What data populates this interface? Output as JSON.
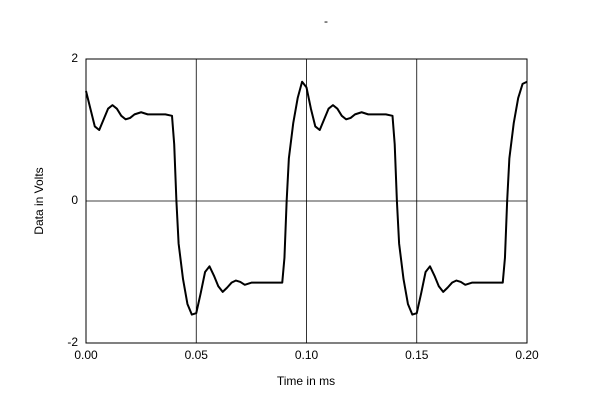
{
  "chart_data": {
    "type": "line",
    "title": "-",
    "x_label": "Time in ms",
    "y_label": "Data in Volts",
    "xlim": [
      0,
      0.2
    ],
    "ylim": [
      -2,
      2
    ],
    "xticks": [
      {
        "value": 0,
        "label": "0.00"
      },
      0.05,
      {
        "value": 0.1,
        "label": "0.10"
      },
      0.15,
      {
        "value": 0.2,
        "label": "0.20"
      }
    ],
    "yticks": [
      -2,
      0,
      2
    ],
    "grid": true,
    "series": [
      {
        "color": "#000000",
        "x": [
          0.0,
          0.002,
          0.004,
          0.006,
          0.008,
          0.01,
          0.012,
          0.014,
          0.016,
          0.018,
          0.02,
          0.022,
          0.025,
          0.028,
          0.032,
          0.036,
          0.039,
          0.04,
          0.041,
          0.042,
          0.044,
          0.046,
          0.048,
          0.05,
          0.052,
          0.054,
          0.056,
          0.058,
          0.06,
          0.062,
          0.064,
          0.066,
          0.068,
          0.07,
          0.072,
          0.075,
          0.08,
          0.085,
          0.089,
          0.09,
          0.091,
          0.092,
          0.094,
          0.096,
          0.098,
          0.1,
          0.102,
          0.104,
          0.106,
          0.108,
          0.11,
          0.112,
          0.114,
          0.116,
          0.118,
          0.12,
          0.122,
          0.125,
          0.128,
          0.132,
          0.136,
          0.139,
          0.14,
          0.141,
          0.142,
          0.144,
          0.146,
          0.148,
          0.15,
          0.152,
          0.154,
          0.156,
          0.158,
          0.16,
          0.162,
          0.164,
          0.166,
          0.168,
          0.17,
          0.172,
          0.175,
          0.18,
          0.185,
          0.189,
          0.19,
          0.191,
          0.192,
          0.194,
          0.196,
          0.198,
          0.2
        ],
        "values": [
          1.55,
          1.3,
          1.05,
          1.0,
          1.15,
          1.3,
          1.35,
          1.3,
          1.2,
          1.15,
          1.17,
          1.22,
          1.25,
          1.22,
          1.22,
          1.22,
          1.2,
          0.8,
          0.0,
          -0.6,
          -1.1,
          -1.45,
          -1.6,
          -1.58,
          -1.3,
          -1.0,
          -0.92,
          -1.05,
          -1.2,
          -1.28,
          -1.22,
          -1.15,
          -1.12,
          -1.14,
          -1.18,
          -1.15,
          -1.15,
          -1.15,
          -1.15,
          -0.8,
          0.0,
          0.6,
          1.1,
          1.45,
          1.68,
          1.6,
          1.3,
          1.05,
          1.0,
          1.15,
          1.3,
          1.35,
          1.3,
          1.2,
          1.15,
          1.17,
          1.22,
          1.25,
          1.22,
          1.22,
          1.22,
          1.2,
          0.8,
          0.0,
          -0.6,
          -1.1,
          -1.45,
          -1.6,
          -1.58,
          -1.3,
          -1.0,
          -0.92,
          -1.05,
          -1.2,
          -1.28,
          -1.22,
          -1.15,
          -1.12,
          -1.14,
          -1.18,
          -1.15,
          -1.15,
          -1.15,
          -1.15,
          -0.8,
          0.0,
          0.6,
          1.1,
          1.45,
          1.65,
          1.68
        ]
      }
    ]
  }
}
